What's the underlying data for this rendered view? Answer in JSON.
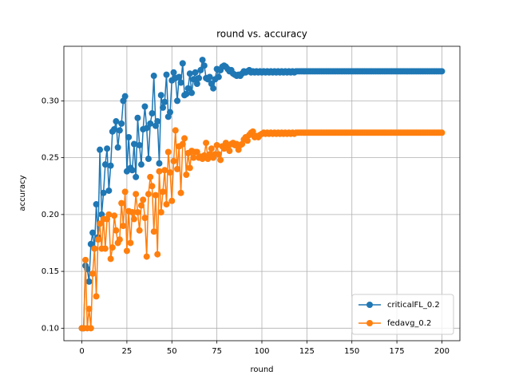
{
  "chart_data": {
    "type": "line",
    "title": "round vs. accuracy",
    "x_label": "round",
    "y_label": "accuracy",
    "x": [
      0,
      1,
      2,
      3,
      4,
      5,
      6,
      7,
      8,
      9,
      10,
      11,
      12,
      13,
      14,
      15,
      16,
      17,
      18,
      19,
      20,
      21,
      22,
      23,
      24,
      25,
      26,
      27,
      28,
      29,
      30,
      31,
      32,
      33,
      34,
      35,
      36,
      37,
      38,
      39,
      40,
      41,
      42,
      43,
      44,
      45,
      46,
      47,
      48,
      49,
      50,
      51,
      52,
      53,
      54,
      55,
      56,
      57,
      58,
      59,
      60,
      61,
      62,
      63,
      64,
      65,
      66,
      67,
      68,
      69,
      70,
      71,
      72,
      73,
      74,
      75,
      76,
      77,
      78,
      79,
      80,
      81,
      82,
      83,
      84,
      85,
      86,
      87,
      88,
      89,
      90,
      91,
      92,
      93,
      94,
      95,
      96,
      97,
      98,
      99,
      100,
      101,
      102,
      103,
      104,
      105,
      106,
      107,
      108,
      109,
      110,
      111,
      112,
      113,
      114,
      115,
      116,
      117,
      118,
      119,
      120,
      121,
      122,
      123,
      124,
      125,
      126,
      127,
      128,
      129,
      130,
      131,
      132,
      133,
      134,
      135,
      136,
      137,
      138,
      139,
      140,
      141,
      142,
      143,
      144,
      145,
      146,
      147,
      148,
      149,
      150,
      151,
      152,
      153,
      154,
      155,
      156,
      157,
      158,
      159,
      160,
      161,
      162,
      163,
      164,
      165,
      166,
      167,
      168,
      169,
      170,
      171,
      172,
      173,
      174,
      175,
      176,
      177,
      178,
      179,
      180,
      181,
      182,
      183,
      184,
      185,
      186,
      187,
      188,
      189,
      190,
      191,
      192,
      193,
      194,
      195,
      196,
      197,
      198,
      199,
      200
    ],
    "series": [
      {
        "name": "criticalFL_0.2",
        "color": "#1f77b4",
        "values": [
          0.1,
          0.1,
          0.155,
          0.152,
          0.141,
          0.174,
          0.184,
          0.17,
          0.209,
          0.18,
          0.257,
          0.2,
          0.219,
          0.244,
          0.258,
          0.221,
          0.243,
          0.273,
          0.275,
          0.282,
          0.259,
          0.274,
          0.28,
          0.3,
          0.304,
          0.238,
          0.268,
          0.241,
          0.239,
          0.262,
          0.233,
          0.285,
          0.261,
          0.244,
          0.275,
          0.295,
          0.276,
          0.249,
          0.28,
          0.289,
          0.322,
          0.278,
          0.282,
          0.245,
          0.305,
          0.294,
          0.299,
          0.323,
          0.286,
          0.29,
          0.318,
          0.325,
          0.32,
          0.3,
          0.321,
          0.316,
          0.333,
          0.305,
          0.306,
          0.311,
          0.324,
          0.307,
          0.319,
          0.325,
          0.315,
          0.32,
          0.327,
          0.336,
          0.331,
          0.32,
          0.319,
          0.321,
          0.315,
          0.311,
          0.319,
          0.328,
          0.321,
          0.327,
          0.33,
          0.331,
          0.33,
          0.328,
          0.326,
          0.327,
          0.324,
          0.323,
          0.322,
          0.323,
          0.322,
          0.324,
          0.326,
          0.325,
          0.326,
          0.327,
          0.325,
          0.326,
          0.325,
          0.326,
          0.325,
          0.326,
          0.325,
          0.326,
          0.325,
          0.326,
          0.325,
          0.326,
          0.325,
          0.326,
          0.325,
          0.326,
          0.325,
          0.326,
          0.325,
          0.326,
          0.325,
          0.326,
          0.325,
          0.326,
          0.325,
          0.326,
          0.326,
          0.326,
          0.326,
          0.326,
          0.326,
          0.326,
          0.326,
          0.326,
          0.326,
          0.326,
          0.326,
          0.326,
          0.326,
          0.326,
          0.326,
          0.326,
          0.326,
          0.326,
          0.326,
          0.326,
          0.326,
          0.326,
          0.326,
          0.326,
          0.326,
          0.326,
          0.326,
          0.326,
          0.326,
          0.326,
          0.326,
          0.326,
          0.326,
          0.326,
          0.326,
          0.326,
          0.326,
          0.326,
          0.326,
          0.326,
          0.326,
          0.326,
          0.326,
          0.326,
          0.326,
          0.326,
          0.326,
          0.326,
          0.326,
          0.326,
          0.326,
          0.326,
          0.326,
          0.326,
          0.326,
          0.326,
          0.326,
          0.326,
          0.326,
          0.326,
          0.326,
          0.326,
          0.326,
          0.326,
          0.326,
          0.326,
          0.326,
          0.326,
          0.326,
          0.326,
          0.326,
          0.326,
          0.326,
          0.326,
          0.326,
          0.326,
          0.326,
          0.326,
          0.326,
          0.326,
          0.326
        ]
      },
      {
        "name": "fedavg_0.2",
        "color": "#ff7f0e",
        "values": [
          0.1,
          0.1,
          0.16,
          0.1,
          0.117,
          0.1,
          0.148,
          0.17,
          0.128,
          0.178,
          0.192,
          0.17,
          0.196,
          0.17,
          0.196,
          0.2,
          0.161,
          0.171,
          0.199,
          0.186,
          0.175,
          0.178,
          0.21,
          0.19,
          0.22,
          0.168,
          0.203,
          0.175,
          0.202,
          0.196,
          0.218,
          0.202,
          0.186,
          0.208,
          0.213,
          0.197,
          0.163,
          0.218,
          0.233,
          0.225,
          0.185,
          0.217,
          0.165,
          0.238,
          0.202,
          0.22,
          0.239,
          0.209,
          0.255,
          0.237,
          0.212,
          0.247,
          0.274,
          0.24,
          0.26,
          0.219,
          0.262,
          0.267,
          0.235,
          0.254,
          0.241,
          0.256,
          0.25,
          0.255,
          0.255,
          0.25,
          0.251,
          0.249,
          0.252,
          0.263,
          0.249,
          0.253,
          0.258,
          0.25,
          0.253,
          0.261,
          0.253,
          0.248,
          0.26,
          0.258,
          0.263,
          0.26,
          0.256,
          0.262,
          0.263,
          0.261,
          0.262,
          0.257,
          0.261,
          0.262,
          0.266,
          0.268,
          0.265,
          0.27,
          0.272,
          0.273,
          0.268,
          0.269,
          0.268,
          0.27,
          0.271,
          0.272,
          0.271,
          0.272,
          0.271,
          0.272,
          0.271,
          0.272,
          0.271,
          0.272,
          0.271,
          0.272,
          0.271,
          0.272,
          0.271,
          0.272,
          0.271,
          0.272,
          0.271,
          0.272,
          0.272,
          0.272,
          0.272,
          0.272,
          0.272,
          0.272,
          0.272,
          0.272,
          0.272,
          0.272,
          0.272,
          0.272,
          0.272,
          0.272,
          0.272,
          0.272,
          0.272,
          0.272,
          0.272,
          0.272,
          0.272,
          0.272,
          0.272,
          0.272,
          0.272,
          0.272,
          0.272,
          0.272,
          0.272,
          0.272,
          0.272,
          0.272,
          0.272,
          0.272,
          0.272,
          0.272,
          0.272,
          0.272,
          0.272,
          0.272,
          0.272,
          0.272,
          0.272,
          0.272,
          0.272,
          0.272,
          0.272,
          0.272,
          0.272,
          0.272,
          0.272,
          0.272,
          0.272,
          0.272,
          0.272,
          0.272,
          0.272,
          0.272,
          0.272,
          0.272,
          0.272,
          0.272,
          0.272,
          0.272,
          0.272,
          0.272,
          0.272,
          0.272,
          0.272,
          0.272,
          0.272,
          0.272,
          0.272,
          0.272,
          0.272,
          0.272,
          0.272,
          0.272,
          0.272,
          0.272,
          0.272
        ]
      }
    ],
    "xlim": [
      -10,
      210
    ],
    "ylim": [
      0.089,
      0.348
    ],
    "xticks": [
      0,
      25,
      50,
      75,
      100,
      125,
      150,
      175,
      200
    ],
    "yticks": [
      {
        "value": 0.1,
        "label": "0.10"
      },
      0.15,
      {
        "value": 0.2,
        "label": "0.20"
      },
      0.25,
      {
        "value": 0.3,
        "label": "0.30"
      }
    ],
    "grid": true,
    "legend": "lower right"
  }
}
